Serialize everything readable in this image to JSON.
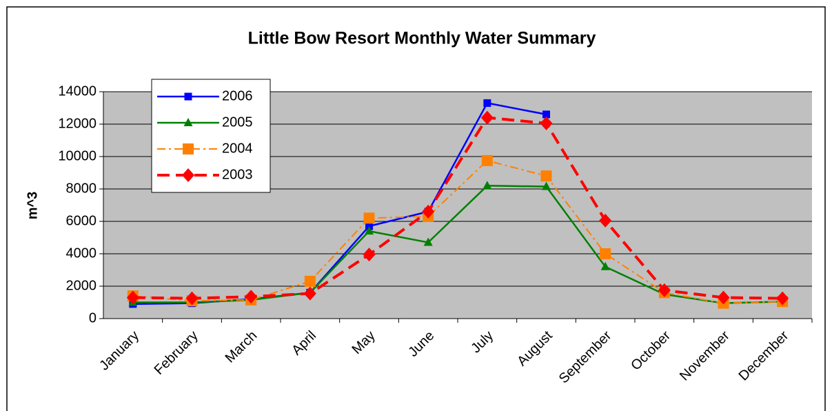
{
  "chart_data": {
    "type": "line",
    "title": "Little Bow Resort Monthly Water Summary",
    "y_label": "m^3",
    "categories": [
      "January",
      "February",
      "March",
      "April",
      "May",
      "June",
      "July",
      "August",
      "September",
      "October",
      "November",
      "December"
    ],
    "series": [
      {
        "name": "2006",
        "color": "#0000ff",
        "marker": "square",
        "values": [
          900,
          950,
          1200,
          1600,
          5700,
          6600,
          13300,
          12600,
          null,
          null,
          null,
          null
        ]
      },
      {
        "name": "2005",
        "color": "#008000",
        "marker": "triangle",
        "values": [
          1000,
          1000,
          1150,
          1600,
          5400,
          4700,
          8200,
          8150,
          3200,
          1500,
          950,
          1050
        ]
      },
      {
        "name": "2004",
        "color": "#ff8000",
        "marker": "square",
        "dash": "dashdot",
        "values": [
          1400,
          1100,
          1150,
          2300,
          6200,
          6300,
          9750,
          8800,
          4000,
          1600,
          950,
          1050
        ]
      },
      {
        "name": "2003",
        "color": "#ff0000",
        "marker": "diamond",
        "dash": "dash",
        "values": [
          1300,
          1250,
          1350,
          1550,
          3950,
          6600,
          12400,
          12050,
          6050,
          1750,
          1300,
          1250
        ]
      }
    ],
    "ylim": [
      0,
      14000
    ],
    "yticks": [
      0,
      2000,
      4000,
      6000,
      8000,
      10000,
      12000,
      14000
    ],
    "grid": true,
    "legend": "upper left"
  }
}
